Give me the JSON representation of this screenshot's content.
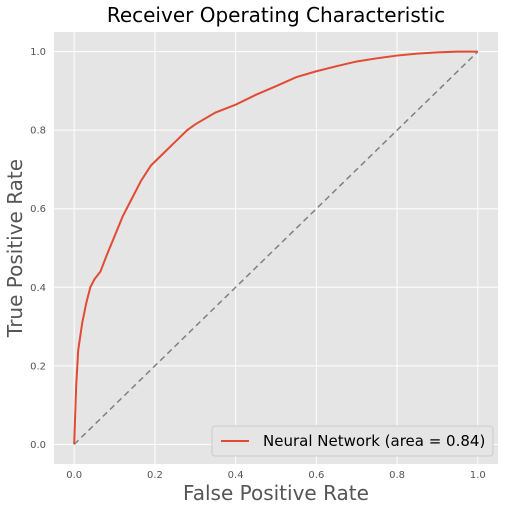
{
  "chart_data": {
    "type": "line",
    "title": "Receiver Operating Characteristic",
    "xlabel": "False Positive Rate",
    "ylabel": "True Positive Rate",
    "xlim": [
      -0.05,
      1.05
    ],
    "ylim": [
      -0.05,
      1.05
    ],
    "xticks": [
      "0.0",
      "0.2",
      "0.4",
      "0.6",
      "0.8",
      "1.0"
    ],
    "yticks": [
      "0.0",
      "0.2",
      "0.4",
      "0.6",
      "0.8",
      "1.0"
    ],
    "grid": true,
    "legend_position": "lower-right",
    "series": [
      {
        "name": "Neural Network (area = 0.84)",
        "color": "#e24a33",
        "style": "solid",
        "x": [
          0.0,
          0.005,
          0.01,
          0.02,
          0.03,
          0.04,
          0.05,
          0.065,
          0.08,
          0.1,
          0.12,
          0.14,
          0.165,
          0.19,
          0.2,
          0.22,
          0.25,
          0.28,
          0.3,
          0.35,
          0.4,
          0.45,
          0.5,
          0.55,
          0.6,
          0.65,
          0.7,
          0.75,
          0.8,
          0.85,
          0.9,
          0.95,
          1.0
        ],
        "y": [
          0.0,
          0.15,
          0.24,
          0.31,
          0.36,
          0.4,
          0.42,
          0.44,
          0.48,
          0.53,
          0.58,
          0.62,
          0.67,
          0.71,
          0.72,
          0.74,
          0.77,
          0.8,
          0.815,
          0.845,
          0.865,
          0.89,
          0.912,
          0.935,
          0.95,
          0.963,
          0.975,
          0.983,
          0.99,
          0.995,
          0.998,
          1.0,
          1.0
        ]
      },
      {
        "name": "",
        "color": "#808080",
        "style": "dashed",
        "x": [
          0.0,
          1.0
        ],
        "y": [
          0.0,
          1.0
        ]
      }
    ]
  }
}
